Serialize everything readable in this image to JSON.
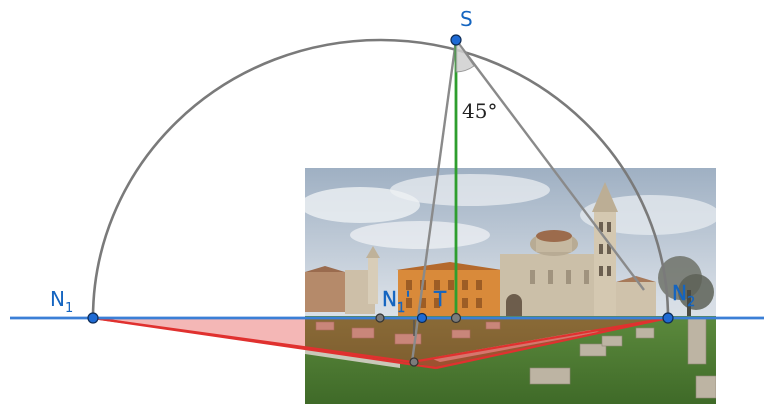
{
  "diagram": {
    "points": {
      "S": {
        "label": "S"
      },
      "N1": {
        "label": "N",
        "sub": "1"
      },
      "N2": {
        "label": "N",
        "sub": "2"
      },
      "N1prime": {
        "label": "N",
        "sub": "1",
        "prime": "'"
      },
      "T": {
        "label": "T"
      }
    },
    "angle": {
      "value": "45°"
    },
    "colors": {
      "horizon": "#3b7fd6",
      "arc": "#7a7a7a",
      "vertical": "#2e9e2e",
      "floor": "#e0312f",
      "point_fill": "#1e6ad4",
      "label": "#1565c0"
    },
    "photo": {
      "subject": "church-with-bell-tower-square",
      "colors": {
        "sky": "#c9d3de",
        "cloud": "#e8ecf0",
        "grass": "#4f7a35",
        "stone": "#c8b99f",
        "orange_building": "#d98a3a"
      }
    }
  }
}
